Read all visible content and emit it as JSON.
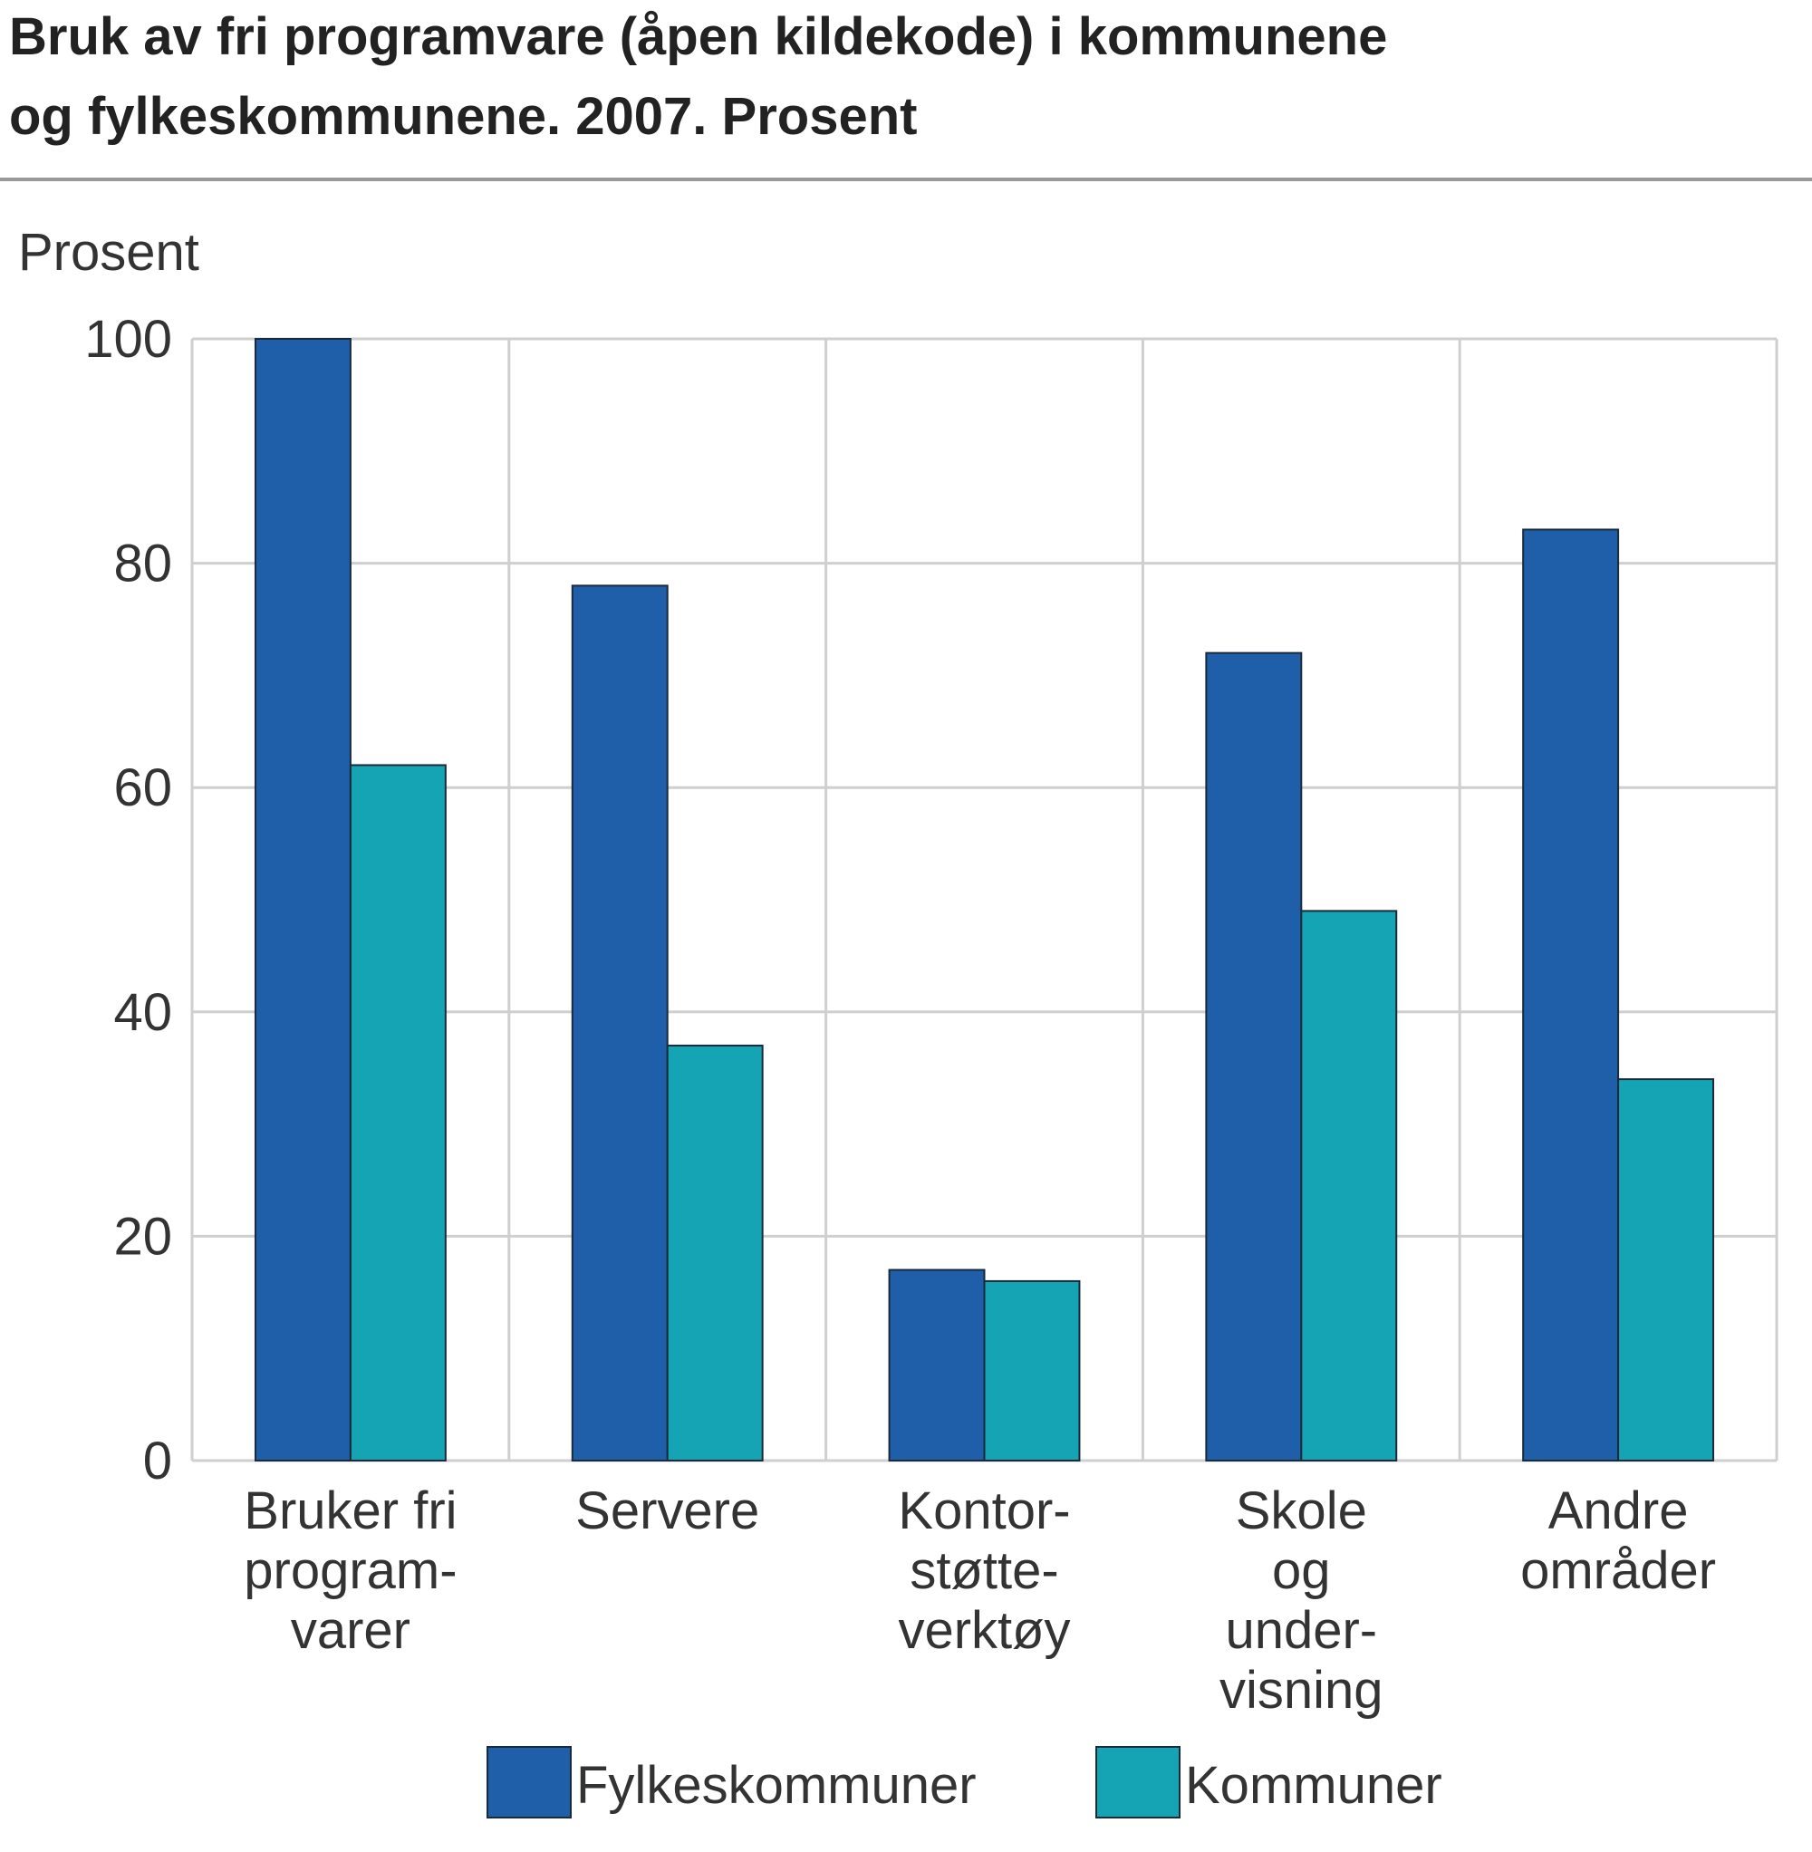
{
  "chart_data": {
    "type": "bar",
    "title": [
      "Bruk av fri programvare (åpen kildekode) i kommunene",
      "og fylkeskommunene. 2007. Prosent"
    ],
    "ylabel": "Prosent",
    "xlabel": "",
    "ylim": [
      0,
      100
    ],
    "yticks": [
      0,
      20,
      40,
      60,
      80,
      100
    ],
    "grid": true,
    "legend_position": "bottom",
    "categories": [
      [
        "Bruker fri",
        "program-",
        "varer"
      ],
      [
        "Servere"
      ],
      [
        "Kontor-",
        "støtte-",
        "verktøy"
      ],
      [
        "Skole",
        "og",
        "under-",
        "visning"
      ],
      [
        "Andre",
        "områder"
      ]
    ],
    "series": [
      {
        "name": "Fylkeskommuner",
        "color": "#1f5ea8",
        "values": [
          100,
          78,
          17,
          72,
          83
        ]
      },
      {
        "name": "Kommuner",
        "color": "#14a4b4",
        "values": [
          62,
          37,
          16,
          49,
          34
        ]
      }
    ]
  }
}
